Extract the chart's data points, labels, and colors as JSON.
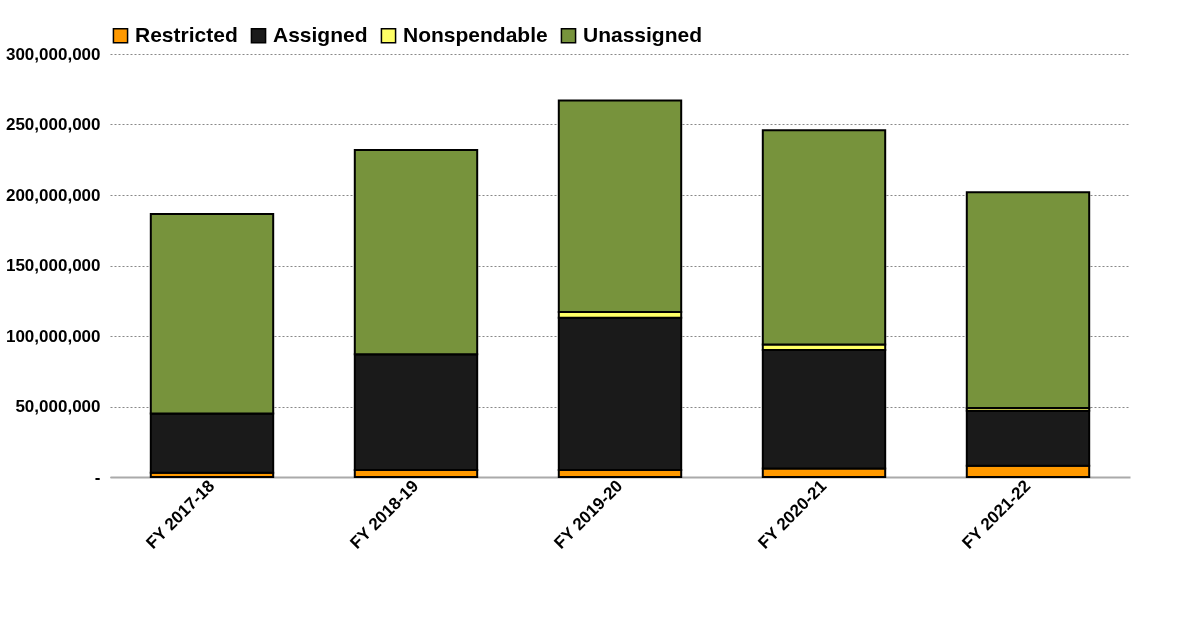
{
  "chart_data": {
    "type": "bar",
    "stacked": true,
    "categories": [
      "FY 2017-18",
      "FY 2018-19",
      "FY 2019-20",
      "FY 2020-21",
      "FY 2021-22"
    ],
    "series": [
      {
        "name": "Restricted",
        "color": "#ff9900",
        "values": [
          3000000,
          5000000,
          5000000,
          6000000,
          8000000
        ]
      },
      {
        "name": "Assigned",
        "color": "#1a1a1a",
        "values": [
          42000000,
          82000000,
          108000000,
          84000000,
          39000000
        ]
      },
      {
        "name": "Nonspendable",
        "color": "#ffff66",
        "values": [
          0,
          0,
          4000000,
          4000000,
          2000000
        ]
      },
      {
        "name": "Unassigned",
        "color": "#77933c",
        "values": [
          141500000,
          145000000,
          150000000,
          152000000,
          153000000
        ]
      }
    ],
    "ylim": [
      0,
      300000000
    ],
    "yticks": [
      {
        "value": 0,
        "label": "-"
      },
      {
        "value": 50000000,
        "label": "50,000,000"
      },
      {
        "value": 100000000,
        "label": "100,000,000"
      },
      {
        "value": 150000000,
        "label": "150,000,000"
      },
      {
        "value": 200000000,
        "label": "200,000,000"
      },
      {
        "value": 250000000,
        "label": "250,000,000"
      },
      {
        "value": 300000000,
        "label": "300,000,000"
      }
    ],
    "grid": "y",
    "legend": "top"
  }
}
